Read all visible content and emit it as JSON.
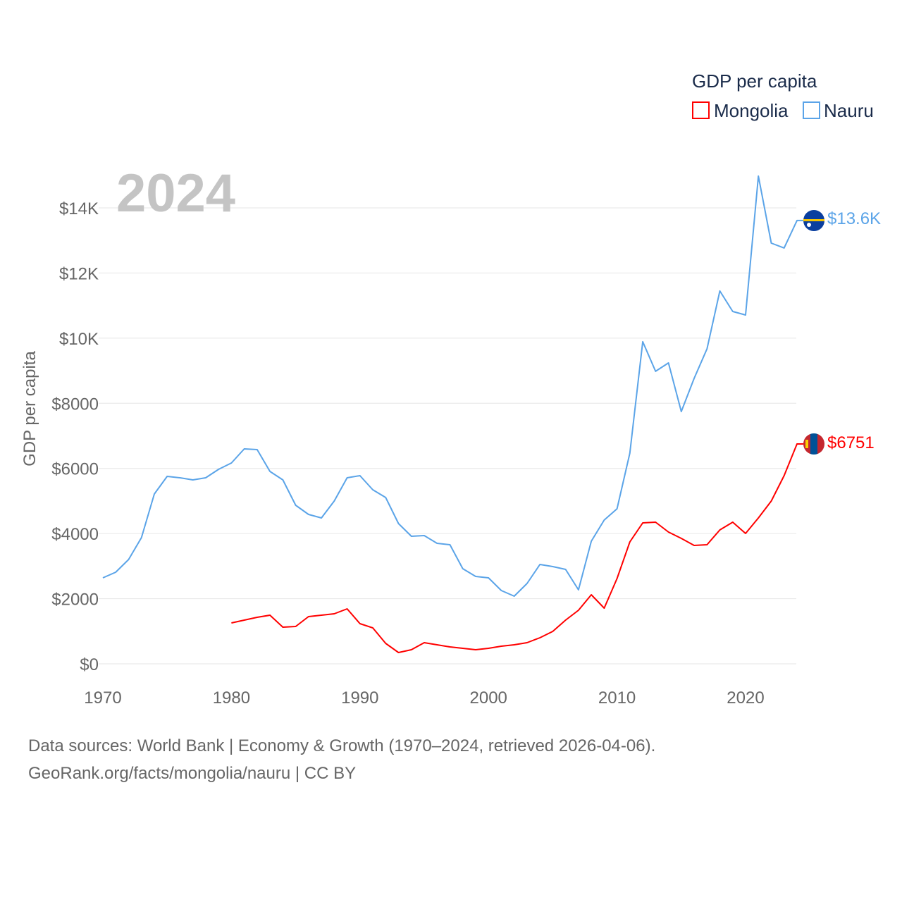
{
  "chart_data": {
    "type": "line",
    "year_label": "2024",
    "ylabel": "GDP per capita",
    "legend_title": "GDP per capita",
    "legend_position": "top-right",
    "xlim": [
      1970,
      2024
    ],
    "ylim": [
      0,
      15000
    ],
    "x_ticks": [
      1970,
      1980,
      1990,
      2000,
      2010,
      2020
    ],
    "y_ticks": [
      {
        "value": 0,
        "label": "$0"
      },
      {
        "value": 2000,
        "label": "$2000"
      },
      {
        "value": 4000,
        "label": "$4000"
      },
      {
        "value": 6000,
        "label": "$6000"
      },
      {
        "value": 8000,
        "label": "$8000"
      },
      {
        "value": 10000,
        "label": "$10K"
      },
      {
        "value": 12000,
        "label": "$12K"
      },
      {
        "value": 14000,
        "label": "$14K"
      }
    ],
    "grid": true,
    "series": [
      {
        "name": "Mongolia",
        "color": "#ff0000",
        "end_label": "$6751",
        "start_year": 1980,
        "values": [
          1255,
          1342,
          1428,
          1493,
          1125,
          1147,
          1450,
          1493,
          1536,
          1688,
          1233,
          1104,
          628,
          346,
          433,
          649,
          584,
          519,
          476,
          433,
          476,
          541,
          584,
          649,
          801,
          995,
          1342,
          1645,
          2121,
          1710,
          2618,
          3744,
          4328,
          4350,
          4047,
          3852,
          3636,
          3657,
          4112,
          4350,
          4004,
          4480,
          4999,
          5778,
          6751
        ]
      },
      {
        "name": "Nauru",
        "color": "#5ba4e8",
        "end_label": "$13.6K",
        "start_year": 1970,
        "values": [
          2640,
          2813,
          3203,
          3874,
          5215,
          5756,
          5713,
          5648,
          5713,
          5973,
          6167,
          6600,
          6579,
          5908,
          5648,
          4869,
          4588,
          4480,
          4999,
          5713,
          5778,
          5345,
          5107,
          4306,
          3917,
          3939,
          3700,
          3657,
          2921,
          2683,
          2640,
          2251,
          2077,
          2467,
          3051,
          2986,
          2900,
          2272,
          3765,
          4415,
          4761,
          6470,
          9890,
          8981,
          9240,
          7747,
          8764,
          9673,
          11448,
          10820,
          10712,
          14975,
          12919,
          12768,
          13612
        ]
      }
    ]
  },
  "footer": {
    "line1": "Data sources: World Bank | Economy & Growth (1970–2024, retrieved 2026-04-06).",
    "line2": "GeoRank.org/facts/mongolia/nauru | CC BY"
  }
}
